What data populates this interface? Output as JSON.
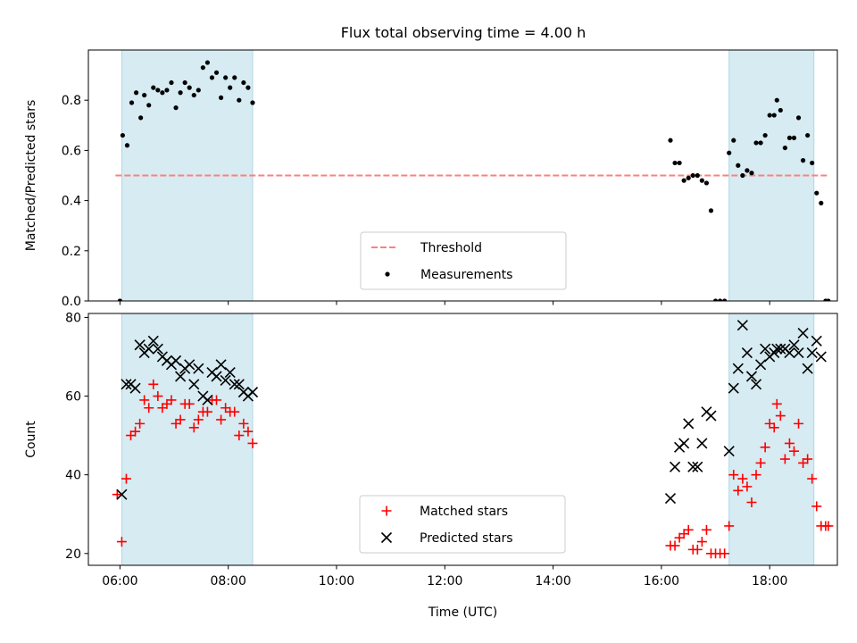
{
  "title": "Flux total observing time = 4.00 h",
  "chart_data": [
    {
      "type": "scatter",
      "ylabel": "Matched/Predicted stars",
      "ylim": [
        0,
        1.0
      ],
      "yticks": [
        0.0,
        0.2,
        0.4,
        0.6,
        0.8
      ],
      "ytick_labels": [
        "0.0",
        "0.2",
        "0.4",
        "0.6",
        "0.8"
      ],
      "xlim": [
        "05:25",
        "19:15"
      ],
      "shaded_intervals": [
        [
          "06:02",
          "08:27"
        ],
        [
          "17:15",
          "18:49"
        ]
      ],
      "threshold": {
        "name": "Threshold",
        "value": 0.5,
        "x_range": [
          "05:55",
          "19:05"
        ],
        "color": "#ff7f7f"
      },
      "legend": {
        "position": "lower center",
        "entries": [
          "Threshold",
          "Measurements"
        ]
      },
      "series": [
        {
          "name": "Measurements",
          "color": "#000000",
          "points": [
            [
              "06:00",
              0.0
            ],
            [
              "06:03",
              0.66
            ],
            [
              "06:08",
              0.62
            ],
            [
              "06:13",
              0.79
            ],
            [
              "06:18",
              0.83
            ],
            [
              "06:23",
              0.73
            ],
            [
              "06:27",
              0.82
            ],
            [
              "06:32",
              0.78
            ],
            [
              "06:37",
              0.85
            ],
            [
              "06:42",
              0.84
            ],
            [
              "06:47",
              0.83
            ],
            [
              "06:52",
              0.84
            ],
            [
              "06:57",
              0.87
            ],
            [
              "07:02",
              0.77
            ],
            [
              "07:07",
              0.83
            ],
            [
              "07:12",
              0.87
            ],
            [
              "07:17",
              0.85
            ],
            [
              "07:22",
              0.82
            ],
            [
              "07:27",
              0.84
            ],
            [
              "07:32",
              0.93
            ],
            [
              "07:37",
              0.95
            ],
            [
              "07:42",
              0.89
            ],
            [
              "07:47",
              0.91
            ],
            [
              "07:52",
              0.81
            ],
            [
              "07:57",
              0.89
            ],
            [
              "08:02",
              0.85
            ],
            [
              "08:07",
              0.89
            ],
            [
              "08:12",
              0.8
            ],
            [
              "08:17",
              0.87
            ],
            [
              "08:22",
              0.85
            ],
            [
              "08:27",
              0.79
            ],
            [
              "16:10",
              0.64
            ],
            [
              "16:15",
              0.55
            ],
            [
              "16:20",
              0.55
            ],
            [
              "16:25",
              0.48
            ],
            [
              "16:30",
              0.49
            ],
            [
              "16:35",
              0.5
            ],
            [
              "16:40",
              0.5
            ],
            [
              "16:45",
              0.48
            ],
            [
              "16:50",
              0.47
            ],
            [
              "16:55",
              0.36
            ],
            [
              "17:00",
              0.0
            ],
            [
              "17:05",
              0.0
            ],
            [
              "17:10",
              0.0
            ],
            [
              "17:15",
              0.59
            ],
            [
              "17:20",
              0.64
            ],
            [
              "17:25",
              0.54
            ],
            [
              "17:30",
              0.5
            ],
            [
              "17:35",
              0.52
            ],
            [
              "17:40",
              0.51
            ],
            [
              "17:45",
              0.63
            ],
            [
              "17:50",
              0.63
            ],
            [
              "17:55",
              0.66
            ],
            [
              "18:00",
              0.74
            ],
            [
              "18:05",
              0.74
            ],
            [
              "18:08",
              0.8
            ],
            [
              "18:12",
              0.76
            ],
            [
              "18:17",
              0.61
            ],
            [
              "18:22",
              0.65
            ],
            [
              "18:27",
              0.65
            ],
            [
              "18:32",
              0.73
            ],
            [
              "18:37",
              0.56
            ],
            [
              "18:42",
              0.66
            ],
            [
              "18:47",
              0.55
            ],
            [
              "18:52",
              0.43
            ],
            [
              "18:57",
              0.39
            ],
            [
              "19:02",
              0.0
            ],
            [
              "19:05",
              0.0
            ]
          ]
        }
      ]
    },
    {
      "type": "scatter",
      "xlabel": "Time (UTC)",
      "ylabel": "Count",
      "ylim": [
        17,
        81
      ],
      "yticks": [
        20,
        40,
        60,
        80
      ],
      "ytick_labels": [
        "20",
        "40",
        "60",
        "80"
      ],
      "xlim": [
        "05:25",
        "19:15"
      ],
      "xticks": [
        "06:00",
        "08:00",
        "10:00",
        "12:00",
        "14:00",
        "16:00",
        "18:00"
      ],
      "shaded_intervals": [
        [
          "06:02",
          "08:27"
        ],
        [
          "17:15",
          "18:49"
        ]
      ],
      "legend": {
        "position": "lower center",
        "entries": [
          "Matched stars",
          "Predicted stars"
        ]
      },
      "series": [
        {
          "name": "Matched stars",
          "marker": "+",
          "color": "#ff0000",
          "points": [
            [
              "05:57",
              35
            ],
            [
              "06:02",
              23
            ],
            [
              "06:07",
              39
            ],
            [
              "06:12",
              50
            ],
            [
              "06:17",
              51
            ],
            [
              "06:22",
              53
            ],
            [
              "06:27",
              59
            ],
            [
              "06:32",
              57
            ],
            [
              "06:37",
              63
            ],
            [
              "06:42",
              60
            ],
            [
              "06:47",
              57
            ],
            [
              "06:52",
              58
            ],
            [
              "06:57",
              59
            ],
            [
              "07:02",
              53
            ],
            [
              "07:07",
              54
            ],
            [
              "07:12",
              58
            ],
            [
              "07:17",
              58
            ],
            [
              "07:22",
              52
            ],
            [
              "07:27",
              54
            ],
            [
              "07:32",
              56
            ],
            [
              "07:37",
              56
            ],
            [
              "07:42",
              59
            ],
            [
              "07:47",
              59
            ],
            [
              "07:52",
              54
            ],
            [
              "07:57",
              57
            ],
            [
              "08:02",
              56
            ],
            [
              "08:07",
              56
            ],
            [
              "08:12",
              50
            ],
            [
              "08:17",
              53
            ],
            [
              "08:22",
              51
            ],
            [
              "08:27",
              48
            ],
            [
              "16:10",
              22
            ],
            [
              "16:15",
              22
            ],
            [
              "16:20",
              24
            ],
            [
              "16:25",
              25
            ],
            [
              "16:30",
              26
            ],
            [
              "16:35",
              21
            ],
            [
              "16:40",
              21
            ],
            [
              "16:45",
              23
            ],
            [
              "16:50",
              26
            ],
            [
              "16:55",
              20
            ],
            [
              "17:00",
              20
            ],
            [
              "17:05",
              20
            ],
            [
              "17:10",
              20
            ],
            [
              "17:15",
              27
            ],
            [
              "17:20",
              40
            ],
            [
              "17:25",
              36
            ],
            [
              "17:30",
              39
            ],
            [
              "17:35",
              37
            ],
            [
              "17:40",
              33
            ],
            [
              "17:45",
              40
            ],
            [
              "17:50",
              43
            ],
            [
              "17:55",
              47
            ],
            [
              "18:00",
              53
            ],
            [
              "18:05",
              52
            ],
            [
              "18:08",
              58
            ],
            [
              "18:12",
              55
            ],
            [
              "18:17",
              44
            ],
            [
              "18:22",
              48
            ],
            [
              "18:27",
              46
            ],
            [
              "18:32",
              53
            ],
            [
              "18:37",
              43
            ],
            [
              "18:42",
              44
            ],
            [
              "18:47",
              39
            ],
            [
              "18:52",
              32
            ],
            [
              "18:57",
              27
            ],
            [
              "19:02",
              27
            ],
            [
              "19:05",
              27
            ]
          ]
        },
        {
          "name": "Predicted stars",
          "marker": "x",
          "color": "#000000",
          "points": [
            [
              "06:02",
              35
            ],
            [
              "06:07",
              63
            ],
            [
              "06:12",
              63
            ],
            [
              "06:17",
              62
            ],
            [
              "06:22",
              73
            ],
            [
              "06:27",
              71
            ],
            [
              "06:32",
              72
            ],
            [
              "06:37",
              74
            ],
            [
              "06:42",
              72
            ],
            [
              "06:47",
              70
            ],
            [
              "06:52",
              69
            ],
            [
              "06:57",
              68
            ],
            [
              "07:02",
              69
            ],
            [
              "07:07",
              65
            ],
            [
              "07:12",
              67
            ],
            [
              "07:17",
              68
            ],
            [
              "07:22",
              63
            ],
            [
              "07:27",
              67
            ],
            [
              "07:32",
              60
            ],
            [
              "07:37",
              59
            ],
            [
              "07:42",
              66
            ],
            [
              "07:47",
              65
            ],
            [
              "07:52",
              68
            ],
            [
              "07:57",
              64
            ],
            [
              "08:02",
              66
            ],
            [
              "08:07",
              63
            ],
            [
              "08:12",
              63
            ],
            [
              "08:17",
              61
            ],
            [
              "08:22",
              60
            ],
            [
              "08:27",
              61
            ],
            [
              "16:10",
              34
            ],
            [
              "16:15",
              42
            ],
            [
              "16:20",
              47
            ],
            [
              "16:25",
              48
            ],
            [
              "16:30",
              53
            ],
            [
              "16:35",
              42
            ],
            [
              "16:40",
              42
            ],
            [
              "16:45",
              48
            ],
            [
              "16:50",
              56
            ],
            [
              "16:55",
              55
            ],
            [
              "17:15",
              46
            ],
            [
              "17:20",
              62
            ],
            [
              "17:25",
              67
            ],
            [
              "17:30",
              78
            ],
            [
              "17:35",
              71
            ],
            [
              "17:40",
              65
            ],
            [
              "17:45",
              63
            ],
            [
              "17:50",
              68
            ],
            [
              "17:55",
              72
            ],
            [
              "18:00",
              70
            ],
            [
              "18:05",
              71
            ],
            [
              "18:08",
              72
            ],
            [
              "18:12",
              72
            ],
            [
              "18:17",
              72
            ],
            [
              "18:22",
              71
            ],
            [
              "18:27",
              73
            ],
            [
              "18:32",
              71
            ],
            [
              "18:37",
              76
            ],
            [
              "18:42",
              67
            ],
            [
              "18:47",
              71
            ],
            [
              "18:52",
              74
            ],
            [
              "18:57",
              70
            ]
          ]
        }
      ]
    }
  ]
}
